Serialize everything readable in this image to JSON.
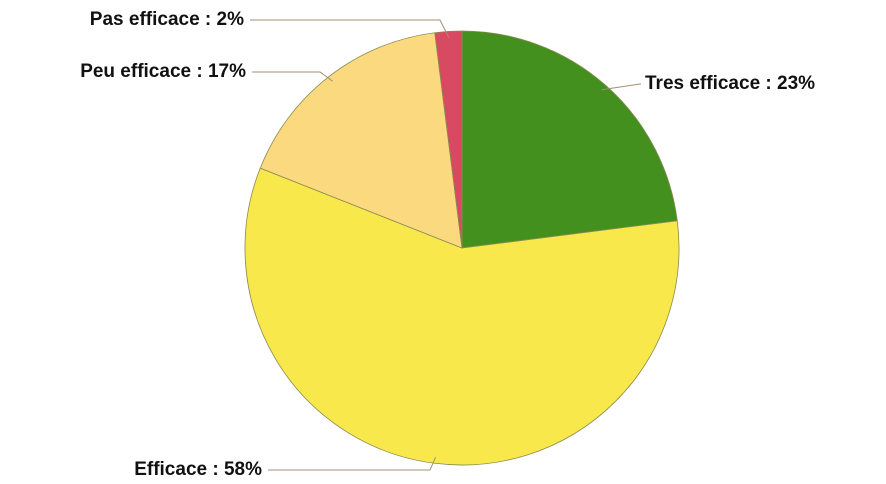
{
  "chart_data": {
    "type": "pie",
    "values": [
      23,
      58,
      17,
      2
    ],
    "value_labels": [
      "Tres efficace : 23%",
      "Efficace : 58%",
      "Peu efficace : 17%",
      "Pas efficace : 2%"
    ],
    "colors": [
      "#43901f",
      "#f8e84c",
      "#fbd97e",
      "#d84a62"
    ]
  }
}
